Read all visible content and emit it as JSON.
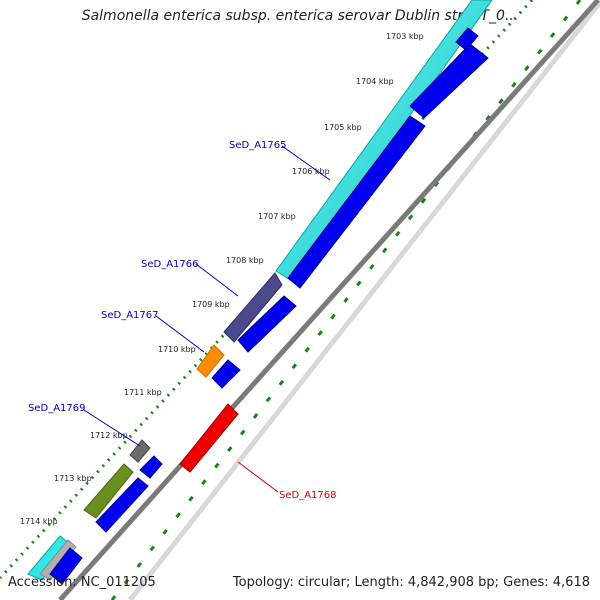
{
  "title": "Salmonella enterica subsp. enterica serovar Dublin str. CT_0...",
  "accession": "Accession: NC_011205",
  "summary": "Topology: circular; Length: 4,842,908 bp; Genes: 4,618",
  "colors": {
    "forward_cds_light": "#33e6e6",
    "forward_cds_cyan": "#00d9d9",
    "reverse_cds": "#0000ee",
    "dark_slate": "#4a4a8c",
    "orange": "#ff8c00",
    "grey_gene": "#6b6b6b",
    "olive_gene": "#6b8e23",
    "red_gene": "#ee0000",
    "gc_dots": "#118811",
    "label_blue": "#0000cc",
    "label_red": "#cc0000"
  },
  "kbp_ticks": [
    "1703 kbp",
    "1704 kbp",
    "1705 kbp",
    "1706 kbp",
    "1707 kbp",
    "1708 kbp",
    "1709 kbp",
    "1710 kbp",
    "1711 kbp",
    "1712 kbp",
    "1713 kbp",
    "1714 kbp"
  ],
  "gene_labels": {
    "a1765": "SeD_A1765",
    "a1766": "SeD_A1766",
    "a1767": "SeD_A1767",
    "a1769": "SeD_A1769",
    "a1768": "SeD_A1768"
  }
}
